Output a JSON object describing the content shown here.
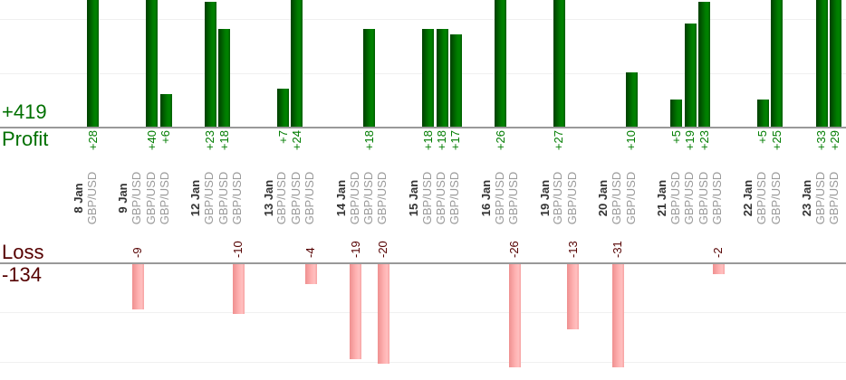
{
  "chart_data": {
    "type": "bar",
    "orientation": "vertical-grouped-by-day",
    "profit_section": {
      "caption": "Profit",
      "total_label": "+419",
      "total_value": 419,
      "gridline_step_units": 10,
      "text_color": "#007000",
      "bar_color": "#007c00"
    },
    "loss_section": {
      "caption": "Loss",
      "total_label": "-134",
      "total_value": -134,
      "gridline_step_units": 10,
      "text_color": "#550000",
      "bar_color": "#ffb3b3"
    },
    "groups": [
      {
        "date": "8 Jan",
        "trades": [
          {
            "instrument": "GBP/USD",
            "value": 28,
            "label": "+28"
          }
        ]
      },
      {
        "date": "9 Jan",
        "trades": [
          {
            "instrument": "GBP/USD",
            "value": -9,
            "label": "-9"
          },
          {
            "instrument": "GBP/USD",
            "value": 40,
            "label": "+40"
          },
          {
            "instrument": "GBP/USD",
            "value": 6,
            "label": "+6"
          }
        ]
      },
      {
        "date": "12 Jan",
        "trades": [
          {
            "instrument": "GBP/USD",
            "value": 23,
            "label": "+23"
          },
          {
            "instrument": "GBP/USD",
            "value": 18,
            "label": "+18"
          },
          {
            "instrument": "GBP/USD",
            "value": -10,
            "label": "-10"
          }
        ]
      },
      {
        "date": "13 Jan",
        "trades": [
          {
            "instrument": "GBP/USD",
            "value": 7,
            "label": "+7"
          },
          {
            "instrument": "GBP/USD",
            "value": 24,
            "label": "+24"
          },
          {
            "instrument": "GBP/USD",
            "value": -4,
            "label": "-4"
          }
        ]
      },
      {
        "date": "14 Jan",
        "trades": [
          {
            "instrument": "GBP/USD",
            "value": -19,
            "label": "-19"
          },
          {
            "instrument": "GBP/USD",
            "value": 18,
            "label": "+18"
          },
          {
            "instrument": "GBP/USD",
            "value": -20,
            "label": "-20"
          }
        ]
      },
      {
        "date": "15 Jan",
        "trades": [
          {
            "instrument": "GBP/USD",
            "value": 18,
            "label": "+18"
          },
          {
            "instrument": "GBP/USD",
            "value": 18,
            "label": "+18"
          },
          {
            "instrument": "GBP/USD",
            "value": 17,
            "label": "+17"
          }
        ]
      },
      {
        "date": "16 Jan",
        "trades": [
          {
            "instrument": "GBP/USD",
            "value": 26,
            "label": "+26"
          },
          {
            "instrument": "GBP/USD",
            "value": -26,
            "label": "-26"
          }
        ]
      },
      {
        "date": "19 Jan",
        "trades": [
          {
            "instrument": "GBP/USD",
            "value": 27,
            "label": "+27"
          },
          {
            "instrument": "GBP/USD",
            "value": -13,
            "label": "-13"
          }
        ]
      },
      {
        "date": "20 Jan",
        "trades": [
          {
            "instrument": "GBP/USD",
            "value": -31,
            "label": "-31"
          },
          {
            "instrument": "GBP/USD",
            "value": 10,
            "label": "+10"
          }
        ]
      },
      {
        "date": "21 Jan",
        "trades": [
          {
            "instrument": "GBP/USD",
            "value": 5,
            "label": "+5"
          },
          {
            "instrument": "GBP/USD",
            "value": 19,
            "label": "+19"
          },
          {
            "instrument": "GBP/USD",
            "value": 23,
            "label": "+23"
          },
          {
            "instrument": "GBP/USD",
            "value": -2,
            "label": "-2"
          }
        ]
      },
      {
        "date": "22 Jan",
        "trades": [
          {
            "instrument": "GBP/USD",
            "value": 5,
            "label": "+5"
          },
          {
            "instrument": "GBP/USD",
            "value": 25,
            "label": "+25"
          }
        ]
      },
      {
        "date": "23 Jan",
        "trades": [
          {
            "instrument": "GBP/USD",
            "value": 33,
            "label": "+33"
          },
          {
            "instrument": "GBP/USD",
            "value": 29,
            "label": "+29"
          }
        ]
      }
    ]
  },
  "colors": {
    "gridline": "#f0f0f0",
    "axis_line": "#999999",
    "date_label": "#333333",
    "instrument_label": "#9a9a9a",
    "profit_bar_gradient": [
      "#003f00",
      "#008300",
      "#005a00"
    ],
    "loss_bar_gradient": [
      "#ef9090",
      "#ffc0c0",
      "#f7a2a2"
    ]
  }
}
